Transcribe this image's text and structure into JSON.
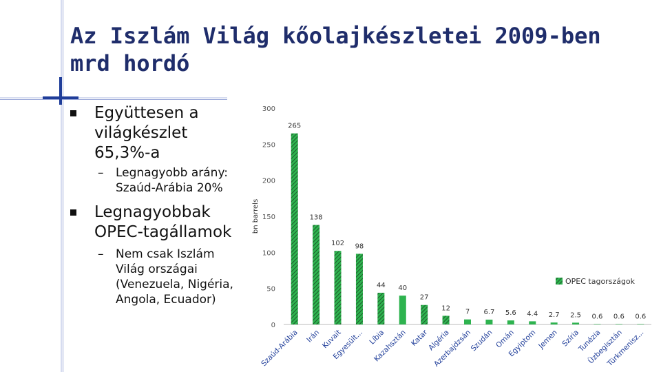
{
  "title": "Az Iszlám Világ kőolajkészletei 2009-ben mrd hordó",
  "bullets": [
    {
      "text": "Együttesen a világkészlet 65,3%-a",
      "sub": [
        "Legnagyobb arány: Szaúd-Arábia 20%"
      ]
    },
    {
      "text": "Legnagyobbak OPEC-tagállamok",
      "sub": [
        "Nem csak Iszlám Világ országai (Venezuela, Nigéria, Angola, Ecuador)"
      ]
    }
  ],
  "chart_data": {
    "type": "bar",
    "ylabel": "bn barrels",
    "ylim": [
      0,
      300
    ],
    "yticks": [
      0,
      50,
      100,
      150,
      200,
      250,
      300
    ],
    "categories": [
      "Szaúd-Arábia",
      "Irán",
      "Kuvait",
      "Egyesült...",
      "Líbia",
      "Kazahsztán",
      "Katar",
      "Algéria",
      "Azerbajdzsán",
      "Szudán",
      "Omán",
      "Egyiptom",
      "Jemen",
      "Szíria",
      "Tunézia",
      "Üzbegisztán",
      "Türkmenisz..."
    ],
    "values": [
      265,
      138,
      102,
      98,
      44,
      40,
      27,
      12,
      7,
      6.7,
      5.6,
      4.4,
      2.7,
      2.5,
      0.6,
      0.6,
      0.6
    ],
    "value_labels": [
      "265",
      "138",
      "102",
      "98",
      "44",
      "40",
      "27",
      "12",
      "7",
      "6.7",
      "5.6",
      "4.4",
      "2.7",
      "2.5",
      "0.6",
      "0.6",
      "0.6"
    ],
    "opec": [
      true,
      true,
      true,
      true,
      true,
      false,
      true,
      true,
      false,
      false,
      false,
      false,
      false,
      false,
      false,
      false,
      false
    ],
    "legend": {
      "label": "OPEC tagországok",
      "placement": "right"
    },
    "colors": {
      "bar": "#2eb34f",
      "opec_hatch": "#1d5a2a",
      "axis": "#bbbbbb"
    }
  }
}
